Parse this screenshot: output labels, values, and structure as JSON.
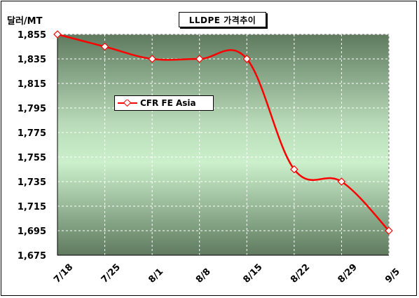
{
  "chart_data": {
    "type": "line",
    "title": "LLDPE 가격추이",
    "ylabel": "달러/MT",
    "xlabel": "",
    "categories": [
      "7/18",
      "7/25",
      "8/1",
      "8/8",
      "8/15",
      "8/22",
      "8/29",
      "9/5"
    ],
    "series": [
      {
        "name": "CFR FE Asia",
        "color": "#ff0000",
        "values": [
          1855,
          1845,
          1835,
          1835,
          1835,
          1745,
          1735,
          1695
        ]
      }
    ],
    "ylim": [
      1675,
      1855
    ],
    "yticks": [
      1675,
      1695,
      1715,
      1735,
      1755,
      1775,
      1795,
      1815,
      1835,
      1855
    ],
    "ytick_labels": [
      "1,675",
      "1,695",
      "1,715",
      "1,735",
      "1,755",
      "1,775",
      "1,795",
      "1,815",
      "1,835",
      "1,855"
    ],
    "grid": true,
    "legend_position": "upper-left inside plot"
  }
}
